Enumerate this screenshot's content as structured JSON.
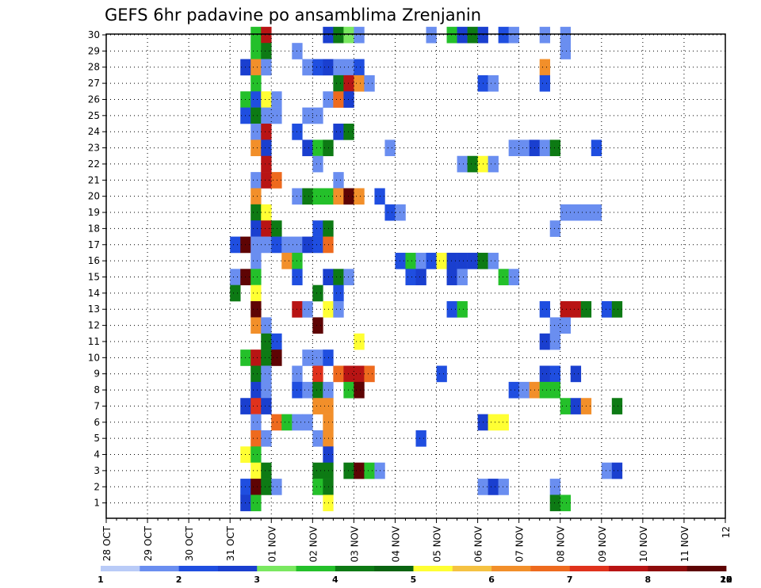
{
  "chart_data": {
    "type": "heatmap",
    "title": "GEFS 6hr padavine po ansamblima Zrenjanin",
    "xlabel": "",
    "ylabel": "",
    "x_tick_labels": [
      "28 OCT",
      "29 OCT",
      "30 OCT",
      "31 OCT",
      "01 NOV",
      "02 NOV",
      "03 NOV",
      "04 NOV",
      "05 NOV",
      "06 NOV",
      "07 NOV",
      "08 NOV",
      "09 NOV",
      "10 NOV",
      "11 NOV",
      "12"
    ],
    "y_tick_labels": [
      "1",
      "2",
      "3",
      "4",
      "5",
      "6",
      "7",
      "8",
      "9",
      "10",
      "11",
      "12",
      "13",
      "14",
      "15",
      "16",
      "17",
      "18",
      "19",
      "20",
      "21",
      "22",
      "23",
      "24",
      "25",
      "26",
      "27",
      "28",
      "29",
      "30"
    ],
    "x_range": [
      "28 OCT 00Z",
      "12 NOV 00Z"
    ],
    "y_range": [
      0,
      30
    ],
    "time_step_hours": 6,
    "grid": "dotted",
    "colorbar": {
      "levels": [
        1,
        2,
        3,
        4,
        5,
        6,
        7,
        8,
        10,
        12,
        15,
        20
      ],
      "colors": [
        "#b9cbf7",
        "#6a8ef0",
        "#1f4ee0",
        "#1a3fcf",
        "#7ae860",
        "#24c02a",
        "#0d7a14",
        "#0a6411",
        "#ffff33",
        "#f5c242",
        "#f28f2a",
        "#ee6a1e",
        "#e0321c",
        "#b81414",
        "#8e0c0c",
        "#5e0404"
      ]
    },
    "cells": [
      [
        30,
        14,
        5
      ],
      [
        30,
        15,
        13
      ],
      [
        30,
        21,
        3
      ],
      [
        30,
        22,
        6
      ],
      [
        30,
        23,
        4
      ],
      [
        30,
        24,
        1
      ],
      [
        30,
        31,
        1
      ],
      [
        30,
        33,
        5
      ],
      [
        30,
        34,
        3
      ],
      [
        30,
        35,
        6
      ],
      [
        30,
        36,
        3
      ],
      [
        30,
        38,
        2
      ],
      [
        30,
        39,
        1
      ],
      [
        30,
        42,
        1
      ],
      [
        30,
        44,
        1
      ],
      [
        29,
        14,
        5
      ],
      [
        29,
        15,
        6
      ],
      [
        29,
        18,
        1
      ],
      [
        29,
        44,
        1
      ],
      [
        28,
        13,
        3
      ],
      [
        28,
        14,
        10
      ],
      [
        28,
        15,
        1
      ],
      [
        28,
        19,
        1
      ],
      [
        28,
        20,
        2
      ],
      [
        28,
        21,
        3
      ],
      [
        28,
        22,
        1
      ],
      [
        28,
        23,
        1
      ],
      [
        28,
        24,
        2
      ],
      [
        28,
        42,
        10
      ],
      [
        27,
        14,
        5
      ],
      [
        27,
        22,
        6
      ],
      [
        27,
        23,
        13
      ],
      [
        27,
        24,
        10
      ],
      [
        27,
        25,
        1
      ],
      [
        27,
        36,
        2
      ],
      [
        27,
        37,
        1
      ],
      [
        27,
        42,
        2
      ],
      [
        26,
        13,
        5
      ],
      [
        26,
        14,
        2
      ],
      [
        26,
        15,
        8
      ],
      [
        26,
        16,
        1
      ],
      [
        26,
        21,
        1
      ],
      [
        26,
        22,
        11
      ],
      [
        26,
        23,
        3
      ],
      [
        25,
        13,
        2
      ],
      [
        25,
        14,
        6
      ],
      [
        25,
        15,
        1
      ],
      [
        25,
        16,
        1
      ],
      [
        25,
        19,
        1
      ],
      [
        25,
        20,
        1
      ],
      [
        24,
        14,
        1
      ],
      [
        24,
        15,
        13
      ],
      [
        24,
        18,
        2
      ],
      [
        24,
        22,
        3
      ],
      [
        24,
        23,
        6
      ],
      [
        23,
        14,
        10
      ],
      [
        23,
        15,
        3
      ],
      [
        23,
        19,
        3
      ],
      [
        23,
        20,
        5
      ],
      [
        23,
        21,
        6
      ],
      [
        23,
        27,
        1
      ],
      [
        23,
        39,
        1
      ],
      [
        23,
        40,
        1
      ],
      [
        23,
        41,
        3
      ],
      [
        23,
        42,
        1
      ],
      [
        23,
        43,
        6
      ],
      [
        23,
        47,
        2
      ],
      [
        22,
        15,
        13
      ],
      [
        22,
        20,
        1
      ],
      [
        22,
        34,
        1
      ],
      [
        22,
        35,
        6
      ],
      [
        22,
        36,
        8
      ],
      [
        22,
        37,
        1
      ],
      [
        21,
        14,
        1
      ],
      [
        21,
        15,
        13
      ],
      [
        21,
        16,
        11
      ],
      [
        21,
        22,
        1
      ],
      [
        20,
        14,
        10
      ],
      [
        20,
        18,
        1
      ],
      [
        20,
        19,
        6
      ],
      [
        20,
        20,
        5
      ],
      [
        20,
        21,
        5
      ],
      [
        20,
        22,
        10
      ],
      [
        20,
        23,
        15
      ],
      [
        20,
        24,
        10
      ],
      [
        20,
        26,
        2
      ],
      [
        19,
        14,
        6
      ],
      [
        19,
        15,
        8
      ],
      [
        19,
        27,
        2
      ],
      [
        19,
        28,
        1
      ],
      [
        19,
        44,
        1
      ],
      [
        19,
        45,
        1
      ],
      [
        19,
        46,
        1
      ],
      [
        19,
        47,
        1
      ],
      [
        18,
        14,
        3
      ],
      [
        18,
        15,
        13
      ],
      [
        18,
        16,
        6
      ],
      [
        18,
        20,
        2
      ],
      [
        18,
        21,
        6
      ],
      [
        18,
        43,
        1
      ],
      [
        17,
        12,
        2
      ],
      [
        17,
        13,
        15
      ],
      [
        17,
        14,
        1
      ],
      [
        17,
        15,
        1
      ],
      [
        17,
        16,
        2
      ],
      [
        17,
        17,
        1
      ],
      [
        17,
        18,
        1
      ],
      [
        17,
        19,
        3
      ],
      [
        17,
        20,
        2
      ],
      [
        17,
        21,
        11
      ],
      [
        16,
        14,
        1
      ],
      [
        16,
        17,
        10
      ],
      [
        16,
        18,
        5
      ],
      [
        16,
        28,
        2
      ],
      [
        16,
        29,
        5
      ],
      [
        16,
        30,
        1
      ],
      [
        16,
        31,
        2
      ],
      [
        16,
        32,
        8
      ],
      [
        16,
        33,
        3
      ],
      [
        16,
        34,
        3
      ],
      [
        16,
        35,
        3
      ],
      [
        16,
        36,
        6
      ],
      [
        16,
        37,
        1
      ],
      [
        15,
        12,
        1
      ],
      [
        15,
        13,
        15
      ],
      [
        15,
        14,
        5
      ],
      [
        15,
        18,
        2
      ],
      [
        15,
        21,
        3
      ],
      [
        15,
        22,
        6
      ],
      [
        15,
        23,
        1
      ],
      [
        15,
        29,
        2
      ],
      [
        15,
        30,
        3
      ],
      [
        15,
        33,
        3
      ],
      [
        15,
        34,
        1
      ],
      [
        15,
        38,
        5
      ],
      [
        15,
        39,
        1
      ],
      [
        14,
        12,
        6
      ],
      [
        14,
        14,
        8
      ],
      [
        14,
        20,
        6
      ],
      [
        14,
        22,
        2
      ],
      [
        13,
        14,
        15
      ],
      [
        13,
        18,
        13
      ],
      [
        13,
        19,
        1
      ],
      [
        13,
        21,
        8
      ],
      [
        13,
        22,
        1
      ],
      [
        13,
        33,
        2
      ],
      [
        13,
        34,
        5
      ],
      [
        13,
        42,
        2
      ],
      [
        13,
        44,
        13
      ],
      [
        13,
        45,
        13
      ],
      [
        13,
        46,
        6
      ],
      [
        13,
        48,
        2
      ],
      [
        13,
        49,
        6
      ],
      [
        12,
        14,
        10
      ],
      [
        12,
        15,
        1
      ],
      [
        12,
        20,
        15
      ],
      [
        12,
        43,
        1
      ],
      [
        12,
        44,
        1
      ],
      [
        11,
        15,
        6
      ],
      [
        11,
        16,
        2
      ],
      [
        11,
        24,
        8
      ],
      [
        11,
        42,
        3
      ],
      [
        11,
        43,
        1
      ],
      [
        10,
        13,
        5
      ],
      [
        10,
        14,
        13
      ],
      [
        10,
        15,
        6
      ],
      [
        10,
        16,
        15
      ],
      [
        10,
        19,
        1
      ],
      [
        10,
        20,
        1
      ],
      [
        10,
        21,
        2
      ],
      [
        9,
        14,
        6
      ],
      [
        9,
        15,
        1
      ],
      [
        9,
        18,
        1
      ],
      [
        9,
        20,
        12
      ],
      [
        9,
        22,
        11
      ],
      [
        9,
        23,
        13
      ],
      [
        9,
        24,
        13
      ],
      [
        9,
        25,
        11
      ],
      [
        9,
        32,
        2
      ],
      [
        9,
        42,
        3
      ],
      [
        9,
        43,
        2
      ],
      [
        9,
        45,
        3
      ],
      [
        8,
        14,
        3
      ],
      [
        8,
        15,
        1
      ],
      [
        8,
        18,
        2
      ],
      [
        8,
        19,
        1
      ],
      [
        8,
        20,
        6
      ],
      [
        8,
        21,
        1
      ],
      [
        8,
        23,
        5
      ],
      [
        8,
        24,
        15
      ],
      [
        8,
        39,
        2
      ],
      [
        8,
        40,
        1
      ],
      [
        8,
        41,
        10
      ],
      [
        8,
        42,
        5
      ],
      [
        8,
        43,
        5
      ],
      [
        7,
        13,
        3
      ],
      [
        7,
        14,
        12
      ],
      [
        7,
        15,
        3
      ],
      [
        7,
        20,
        10
      ],
      [
        7,
        21,
        10
      ],
      [
        7,
        44,
        5
      ],
      [
        7,
        45,
        3
      ],
      [
        7,
        46,
        10
      ],
      [
        7,
        49,
        6
      ],
      [
        6,
        14,
        1
      ],
      [
        6,
        16,
        11
      ],
      [
        6,
        17,
        5
      ],
      [
        6,
        18,
        1
      ],
      [
        6,
        19,
        1
      ],
      [
        6,
        21,
        10
      ],
      [
        6,
        36,
        3
      ],
      [
        6,
        37,
        8
      ],
      [
        6,
        38,
        8
      ],
      [
        5,
        14,
        11
      ],
      [
        5,
        15,
        1
      ],
      [
        5,
        20,
        1
      ],
      [
        5,
        21,
        10
      ],
      [
        5,
        30,
        2
      ],
      [
        4,
        13,
        8
      ],
      [
        4,
        14,
        5
      ],
      [
        4,
        21,
        3
      ],
      [
        3,
        14,
        8
      ],
      [
        3,
        15,
        6
      ],
      [
        3,
        20,
        6
      ],
      [
        3,
        21,
        6
      ],
      [
        3,
        23,
        6
      ],
      [
        3,
        24,
        15
      ],
      [
        3,
        25,
        5
      ],
      [
        3,
        26,
        1
      ],
      [
        3,
        48,
        1
      ],
      [
        3,
        49,
        3
      ],
      [
        2,
        13,
        2
      ],
      [
        2,
        14,
        15
      ],
      [
        2,
        15,
        6
      ],
      [
        2,
        16,
        1
      ],
      [
        2,
        20,
        5
      ],
      [
        2,
        21,
        6
      ],
      [
        2,
        36,
        1
      ],
      [
        2,
        37,
        3
      ],
      [
        2,
        38,
        1
      ],
      [
        2,
        43,
        1
      ],
      [
        1,
        13,
        3
      ],
      [
        1,
        14,
        5
      ],
      [
        1,
        21,
        8
      ],
      [
        1,
        43,
        6
      ],
      [
        1,
        44,
        5
      ]
    ]
  }
}
